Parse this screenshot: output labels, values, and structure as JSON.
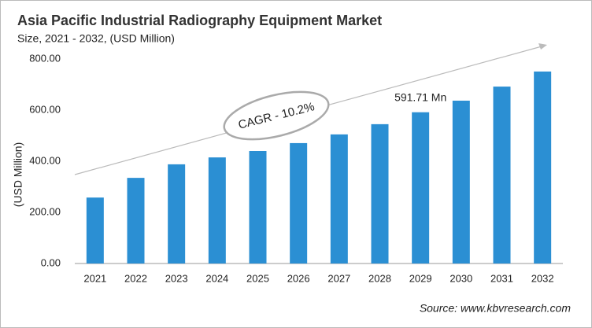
{
  "chart_data": {
    "type": "bar",
    "title": "Asia Pacific Industrial Radiography Equipment Market",
    "subtitle": "Size, 2021 - 2032, (USD Million)",
    "y_label": "(USD Million)",
    "source": "Source: www.kbvresearch.com",
    "annotation": "CAGR - 10.2%",
    "categories": [
      "2021",
      "2022",
      "2023",
      "2024",
      "2025",
      "2026",
      "2027",
      "2028",
      "2029",
      "2030",
      "2031",
      "2032"
    ],
    "values": [
      258,
      335,
      388,
      415,
      440,
      471,
      505,
      545,
      591.71,
      637,
      692,
      751
    ],
    "value_labels": [
      null,
      null,
      null,
      null,
      null,
      null,
      null,
      null,
      "591.71 Mn",
      null,
      null,
      null
    ],
    "color": "#2b8fd3",
    "ylim": [
      0,
      800
    ],
    "yticks": [
      {
        "value": 0,
        "label": "0.00"
      },
      {
        "value": 200,
        "label": "200.00"
      },
      {
        "value": 400,
        "label": "400.00"
      },
      {
        "value": 600,
        "label": "600.00"
      },
      {
        "value": 800,
        "label": "800.00"
      }
    ],
    "grid": false
  }
}
